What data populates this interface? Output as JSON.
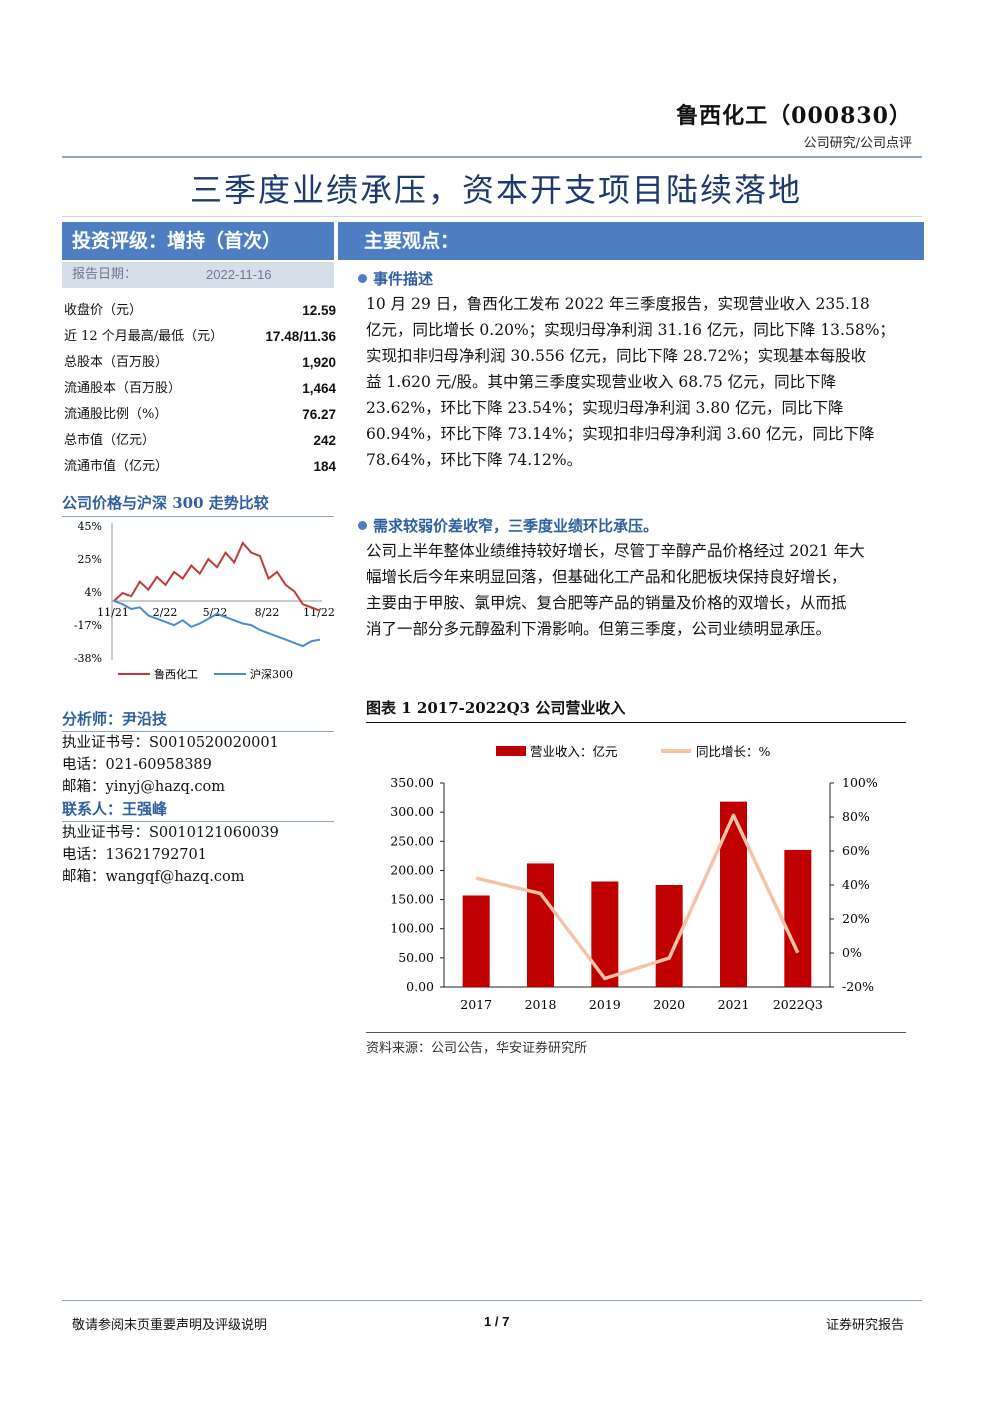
{
  "header": {
    "company": "鲁西化工（000830）",
    "report_type": "公司研究/公司点评"
  },
  "title": "三季度业绩承压，资本开支项目陆续落地",
  "rating_bar": "投资评级：增持（首次）",
  "main_bar": "主要观点：",
  "report_date": {
    "label": "报告日期：",
    "value": "2022-11-16"
  },
  "stats": [
    {
      "key": "收盘价（元）",
      "value": "12.59"
    },
    {
      "key": "近 12 个月最高/最低（元）",
      "value": "17.48/11.36"
    },
    {
      "key": "总股本（百万股）",
      "value": "1,920"
    },
    {
      "key": "流通股本（百万股）",
      "value": "1,464"
    },
    {
      "key": "流通股比例（%）",
      "value": "76.27"
    },
    {
      "key": "总市值（亿元）",
      "value": "242"
    },
    {
      "key": "流通市值（亿元）",
      "value": "184"
    }
  ],
  "price_chart": {
    "heading": "公司价格与沪深 300 走势比较",
    "y_ticks": [
      "45%",
      "25%",
      "4%",
      "-17%",
      "-38%"
    ],
    "x_ticks": [
      "11/21",
      "2/22",
      "5/22",
      "8/22",
      "11/22"
    ],
    "legend": [
      "鲁西化工",
      "沪深300"
    ],
    "colors": {
      "company": "#c0393b",
      "index": "#4d8bd0"
    },
    "company_series": [
      0,
      5,
      3,
      12,
      7,
      15,
      10,
      18,
      14,
      22,
      17,
      26,
      21,
      30,
      24,
      36,
      30,
      28,
      14,
      18,
      10,
      6,
      -2,
      -4,
      -6
    ],
    "index_series": [
      0,
      -2,
      -5,
      -4,
      -9,
      -11,
      -13,
      -15,
      -12,
      -16,
      -14,
      -11,
      -8,
      -10,
      -12,
      -14,
      -15,
      -18,
      -20,
      -22,
      -24,
      -26,
      -28,
      -25,
      -24
    ]
  },
  "analyst": {
    "heading_1": "分析师：尹沿技",
    "lines_1": [
      "执业证书号：S0010520020001",
      "电话：021-60958389",
      "邮箱：yinyj@hazq.com"
    ],
    "heading_2": "联系人：王强峰",
    "lines_2": [
      "执业证书号：S0010121060039",
      "电话：13621792701",
      "邮箱：wangqf@hazq.com"
    ]
  },
  "event": {
    "heading": "事件描述",
    "lines": [
      "10 月 29 日，鲁西化工发布 2022 年三季度报告，实现营业收入 235.18",
      "亿元，同比增长 0.20%；实现归母净利润 31.16 亿元，同比下降 13.58%；",
      "实现扣非归母净利润 30.556 亿元，同比下降 28.72%；实现基本每股收",
      "益 1.620 元/股。其中第三季度实现营业收入 68.75 亿元，同比下降",
      "23.62%，环比下降 23.54%；实现归母净利润 3.80 亿元，同比下降",
      "60.94%，环比下降 73.14%；实现扣非归母净利润 3.60 亿元，同比下降",
      "78.64%，环比下降 74.12%。"
    ]
  },
  "demand": {
    "heading": "需求较弱价差收窄，三季度业绩环比承压。",
    "lines": [
      "公司上半年整体业绩维持较好增长，尽管丁辛醇产品价格经过 2021 年大",
      "幅增长后今年来明显回落，但基础化工产品和化肥板块保持良好增长，",
      "主要由于甲胺、氯甲烷、复合肥等产品的销量及价格的双增长，从而抵",
      "消了一部分多元醇盈利下滑影响。但第三季度，公司业绩明显承压。"
    ]
  },
  "figure": {
    "title": "图表 1 2017-2022Q3 公司营业收入",
    "source": "资料来源：公司公告，华安证券研究所"
  },
  "chart_data": {
    "type": "bar",
    "categories": [
      "2017",
      "2018",
      "2019",
      "2020",
      "2021",
      "2022Q3"
    ],
    "series": [
      {
        "name": "营业收入：亿元",
        "type": "bar",
        "axis": "left",
        "color": "#c00000",
        "values": [
          157,
          212,
          181,
          175,
          318,
          235.18
        ]
      },
      {
        "name": "同比增长：%",
        "type": "line",
        "axis": "right",
        "color": "#f4c2a9",
        "values": [
          44,
          35,
          -15,
          -3,
          81,
          0.2
        ]
      }
    ],
    "ylim": [
      0,
      350
    ],
    "y_ticks": [
      "350.00",
      "300.00",
      "250.00",
      "200.00",
      "150.00",
      "100.00",
      "50.00",
      "0.00"
    ],
    "y2lim": [
      -20,
      100
    ],
    "y2_ticks": [
      "100%",
      "80%",
      "60%",
      "40%",
      "20%",
      "0%",
      "-20%"
    ],
    "legend_position": "top",
    "grid": false
  },
  "footer": {
    "left": "敬请参阅末页重要声明及评级说明",
    "page": "1 / 7",
    "right": "证券研究报告"
  }
}
